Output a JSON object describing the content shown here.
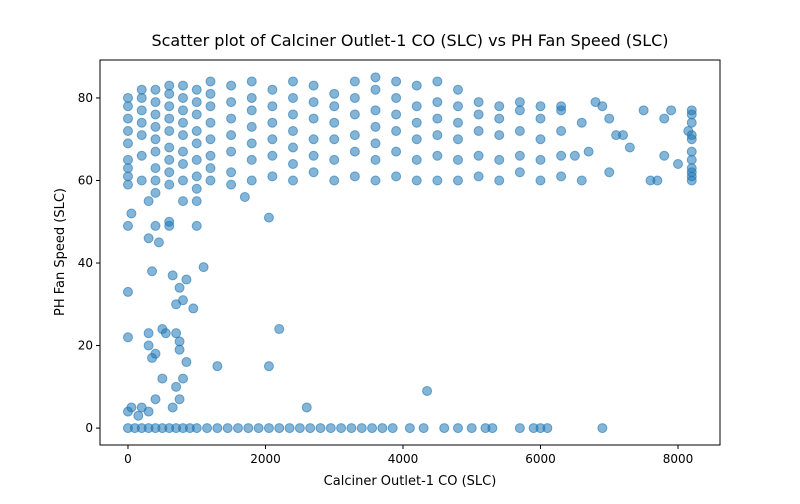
{
  "chart_data": {
    "type": "scatter",
    "title": "Scatter plot of Calciner Outlet-1 CO (SLC) vs PH Fan Speed (SLC)",
    "x_label": "Calciner Outlet-1 CO (SLC)",
    "y_label": "PH Fan Speed (SLC)",
    "color": "#1f77b4",
    "xlim": [
      -407,
      8611
    ],
    "ylim": [
      -4.1,
      89.2
    ],
    "xticks": [
      0,
      2000,
      4000,
      6000,
      8000
    ],
    "yticks": [
      0,
      20,
      40,
      60,
      80
    ],
    "x": [
      0,
      100,
      200,
      300,
      400,
      500,
      600,
      700,
      800,
      900,
      1000,
      1150,
      1300,
      1450,
      1600,
      1750,
      1900,
      2050,
      2200,
      2350,
      2500,
      2650,
      2800,
      2950,
      3100,
      3250,
      3400,
      3550,
      3700,
      3850,
      4100,
      4300,
      4600,
      4800,
      5000,
      5200,
      5300,
      5700,
      5900,
      6000,
      6100,
      6900,
      0,
      50,
      150,
      200,
      300,
      0,
      0,
      0,
      50,
      300,
      350,
      400,
      300,
      500,
      550,
      350,
      300,
      450,
      400,
      600,
      650,
      700,
      800,
      750,
      850,
      950,
      1100,
      700,
      750,
      750,
      850,
      800,
      700,
      750,
      500,
      400,
      650,
      1300,
      2050,
      2200,
      2600,
      4350,
      1000,
      800,
      1700,
      2050,
      300,
      600,
      1000,
      0,
      0,
      0,
      0,
      0,
      0,
      0,
      0,
      0,
      200,
      200,
      200,
      200,
      200,
      200,
      200,
      400,
      400,
      400,
      400,
      400,
      400,
      400,
      400,
      400,
      600,
      600,
      600,
      600,
      600,
      600,
      600,
      600,
      600,
      800,
      800,
      800,
      800,
      800,
      800,
      800,
      800,
      1000,
      1000,
      1000,
      1000,
      1000,
      1000,
      1000,
      1000,
      1200,
      1200,
      1200,
      1200,
      1200,
      1200,
      1200,
      1200,
      1500,
      1500,
      1500,
      1500,
      1500,
      1500,
      1500,
      1800,
      1800,
      1800,
      1800,
      1800,
      1800,
      1800,
      2100,
      2100,
      2100,
      2100,
      2100,
      2100,
      2400,
      2400,
      2400,
      2400,
      2400,
      2400,
      2400,
      2700,
      2700,
      2700,
      2700,
      2700,
      2700,
      3000,
      3000,
      3000,
      3000,
      3000,
      3000,
      3300,
      3300,
      3300,
      3300,
      3300,
      3300,
      3600,
      3600,
      3600,
      3600,
      3600,
      3600,
      3600,
      3900,
      3900,
      3900,
      3900,
      3900,
      3900,
      4200,
      4200,
      4200,
      4200,
      4200,
      4200,
      4500,
      4500,
      4500,
      4500,
      4500,
      4500,
      4800,
      4800,
      4800,
      4800,
      4800,
      4800,
      5100,
      5100,
      5100,
      5100,
      5100,
      5400,
      5400,
      5400,
      5400,
      5400,
      5700,
      5700,
      5700,
      5700,
      5700,
      6000,
      6000,
      6000,
      6000,
      6000,
      6300,
      6300,
      6300,
      6300,
      6300,
      8200,
      8200,
      8200,
      8200,
      8200,
      8200,
      8200,
      8200,
      8200,
      8200,
      8200,
      8150,
      6600,
      6700,
      6800,
      6900,
      7000,
      7100,
      7200,
      7300,
      7500,
      7600,
      7700,
      7800,
      7900,
      8000,
      6500,
      6600,
      7000,
      7800
    ],
    "values": [
      0,
      0,
      0,
      0,
      0,
      0,
      0,
      0,
      0,
      0,
      0,
      0,
      0,
      0,
      0,
      0,
      0,
      0,
      0,
      0,
      0,
      0,
      0,
      0,
      0,
      0,
      0,
      0,
      0,
      0,
      0,
      0,
      0,
      0,
      0,
      0,
      0,
      0,
      0,
      0,
      0,
      0,
      4,
      5,
      3,
      5,
      4,
      22,
      33,
      49,
      52,
      20,
      17,
      18,
      23,
      24,
      23,
      38,
      46,
      45,
      49,
      50,
      37,
      30,
      31,
      34,
      36,
      29,
      39,
      23,
      21,
      19,
      16,
      12,
      10,
      7,
      12,
      7,
      5,
      15,
      15,
      24,
      5,
      9,
      55,
      55,
      56,
      51,
      55,
      49,
      49,
      59,
      61,
      63,
      65,
      69,
      72,
      75,
      78,
      80,
      60,
      66,
      71,
      74,
      77,
      80,
      82,
      57,
      60,
      63,
      67,
      70,
      73,
      76,
      79,
      82,
      59,
      62,
      65,
      68,
      72,
      75,
      78,
      81,
      83,
      60,
      64,
      67,
      71,
      74,
      77,
      80,
      83,
      58,
      61,
      65,
      69,
      72,
      76,
      79,
      82,
      60,
      63,
      66,
      70,
      74,
      78,
      81,
      84,
      59,
      62,
      67,
      71,
      75,
      79,
      83,
      60,
      65,
      69,
      73,
      77,
      80,
      84,
      61,
      66,
      70,
      74,
      78,
      82,
      60,
      64,
      68,
      72,
      76,
      80,
      84,
      62,
      66,
      70,
      75,
      79,
      83,
      60,
      65,
      70,
      74,
      78,
      81,
      61,
      67,
      71,
      76,
      80,
      84,
      60,
      65,
      69,
      73,
      77,
      82,
      85,
      61,
      67,
      72,
      76,
      80,
      84,
      60,
      65,
      70,
      74,
      78,
      83,
      60,
      66,
      71,
      75,
      79,
      84,
      60,
      65,
      70,
      74,
      78,
      82,
      61,
      66,
      72,
      76,
      79,
      60,
      65,
      71,
      75,
      78,
      62,
      66,
      72,
      77,
      79,
      60,
      65,
      70,
      75,
      78,
      61,
      66,
      72,
      77,
      78,
      60,
      61,
      62,
      63,
      65,
      67,
      70,
      71,
      74,
      77,
      76,
      72,
      60,
      67,
      79,
      78,
      62,
      71,
      71,
      68,
      77,
      60,
      60,
      66,
      77,
      64,
      66,
      74,
      75,
      75
    ]
  }
}
